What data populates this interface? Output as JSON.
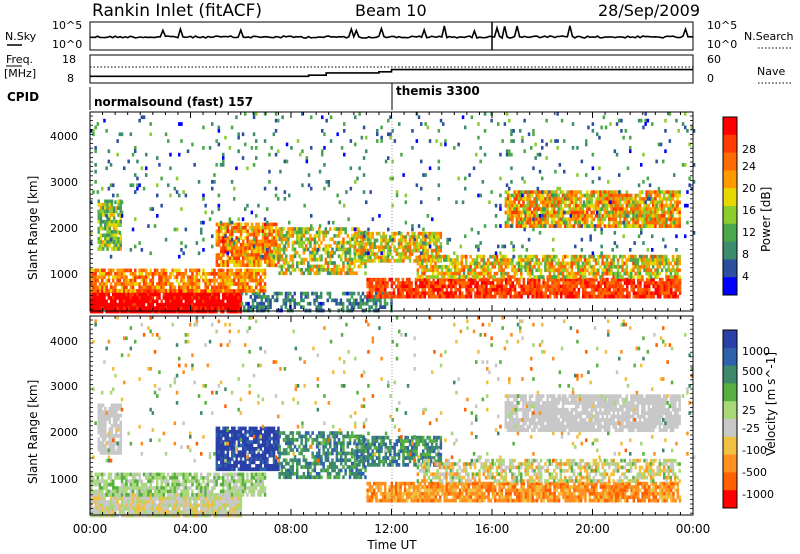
{
  "header": {
    "station": "Rankin Inlet (fitACF)",
    "beam": "Beam 10",
    "date": "28/Sep/2009"
  },
  "noise_panel": {
    "left_label": "N.Sky",
    "left_ticks": [
      "10^5",
      "10^0"
    ],
    "right_label": "N.Search",
    "right_ticks": [
      "10^5",
      "10^0"
    ]
  },
  "freq_panel": {
    "left_label_1": "Freq.",
    "left_label_2": "[MHz]",
    "left_ticks": [
      "18",
      "8"
    ],
    "right_label": "Nave",
    "right_ticks": [
      "60",
      "0"
    ]
  },
  "cpid_panel": {
    "label": "CPID",
    "segments": [
      "normalsound (fast) 157",
      "themis 3300"
    ]
  },
  "power_panel": {
    "ylabel": "Slant Range [km]",
    "yticks": [
      "4000",
      "3000",
      "2000",
      "1000"
    ],
    "colorbar_label": "Power [dB]",
    "colorbar_ticks": [
      "28",
      "24",
      "20",
      "16",
      "12",
      "8",
      "4"
    ],
    "colors": [
      "#0000ff",
      "#2c4fa0",
      "#3c8c6e",
      "#4aa84a",
      "#8ccc2c",
      "#e6d800",
      "#ff9a00",
      "#ff6a00",
      "#ff3a00",
      "#ff0000"
    ]
  },
  "velocity_panel": {
    "ylabel": "Slant Range [km]",
    "yticks": [
      "4000",
      "3000",
      "2000",
      "1000"
    ],
    "colorbar_label": "Velocity [m s^-1]",
    "colorbar_ticks": [
      "1000",
      "500",
      "100",
      "25",
      "-25",
      "-100",
      "-500",
      "-1000"
    ],
    "colors": [
      "#2a3fa8",
      "#2f62ac",
      "#3d8a6a",
      "#58b040",
      "#a8d878",
      "#c8c8c8",
      "#f0c040",
      "#ff9020",
      "#ff6000",
      "#ff0000"
    ]
  },
  "time_axis": {
    "label": "Time UT",
    "ticks": [
      "00:00",
      "04:00",
      "08:00",
      "12:00",
      "16:00",
      "20:00",
      "00:00"
    ]
  },
  "chart_data": [
    {
      "type": "line",
      "title": "N.Sky / N.Search",
      "x_range_hours": [
        0,
        24
      ],
      "y_scale": "log",
      "ylim": [
        "10^0",
        "10^5"
      ]
    },
    {
      "type": "line",
      "title": "Freq. / Nave",
      "x_range_hours": [
        0,
        24
      ],
      "ylim_freq_mhz": [
        8,
        18
      ],
      "ylim_nave": [
        0,
        60
      ],
      "freq_steps": [
        {
          "from_h": 0.0,
          "to_h": 8.7,
          "value": 10.4
        },
        {
          "from_h": 8.7,
          "to_h": 9.4,
          "value": 10.8
        },
        {
          "from_h": 9.4,
          "to_h": 11.5,
          "value": 11.6
        },
        {
          "from_h": 11.5,
          "to_h": 12.0,
          "value": 12.0
        },
        {
          "from_h": 12.0,
          "to_h": 24.0,
          "value": 12.8
        }
      ]
    },
    {
      "type": "heatmap",
      "title": "Power",
      "xlabel": "Time UT",
      "ylabel": "Slant Range [km]",
      "x_range_hours": [
        0,
        24
      ],
      "ylim_km": [
        180,
        4500
      ],
      "zlim_db": [
        0,
        32
      ],
      "scatter_regions": [
        {
          "t0": 0.0,
          "t1": 6.0,
          "r0": 180,
          "r1": 650,
          "level": 31,
          "spread": 3,
          "density": 0.95
        },
        {
          "t0": 6.0,
          "t1": 12.0,
          "r0": 180,
          "r1": 600,
          "level": 7,
          "spread": 4,
          "density": 0.5
        },
        {
          "t0": 0.0,
          "t1": 7.0,
          "r0": 650,
          "r1": 1100,
          "level": 22,
          "spread": 6,
          "density": 0.8
        },
        {
          "t0": 0.3,
          "t1": 1.2,
          "r0": 1500,
          "r1": 2600,
          "level": 14,
          "spread": 6,
          "density": 0.8
        },
        {
          "t0": 5.0,
          "t1": 7.5,
          "r0": 1200,
          "r1": 2100,
          "level": 22,
          "spread": 7,
          "density": 0.85
        },
        {
          "t0": 7.5,
          "t1": 11.0,
          "r0": 1000,
          "r1": 2000,
          "level": 16,
          "spread": 8,
          "density": 0.6
        },
        {
          "t0": 10.5,
          "t1": 14.0,
          "r0": 1300,
          "r1": 1900,
          "level": 18,
          "spread": 7,
          "density": 0.7
        },
        {
          "t0": 11.0,
          "t1": 23.5,
          "r0": 500,
          "r1": 900,
          "level": 27,
          "spread": 4,
          "density": 0.85
        },
        {
          "t0": 13.0,
          "t1": 23.5,
          "r0": 900,
          "r1": 1400,
          "level": 18,
          "spread": 8,
          "density": 0.75
        },
        {
          "t0": 16.5,
          "t1": 23.5,
          "r0": 2000,
          "r1": 2800,
          "level": 20,
          "spread": 8,
          "density": 0.85
        },
        {
          "t0": 0.0,
          "t1": 24.0,
          "r0": 1400,
          "r1": 4500,
          "level": 8,
          "spread": 6,
          "density": 0.05
        }
      ]
    },
    {
      "type": "heatmap",
      "title": "Velocity",
      "xlabel": "Time UT",
      "ylabel": "Slant Range [km]",
      "x_range_hours": [
        0,
        24
      ],
      "ylim_km": [
        180,
        4500
      ],
      "zlim_ms": [
        -1000,
        1000
      ],
      "scatter_regions": [
        {
          "t0": 0.0,
          "t1": 6.0,
          "r0": 180,
          "r1": 650,
          "level": 5,
          "spread": 1,
          "density": 0.95
        },
        {
          "t0": 0.0,
          "t1": 7.0,
          "r0": 650,
          "r1": 1100,
          "level": 4,
          "spread": 1,
          "density": 0.8
        },
        {
          "t0": 0.3,
          "t1": 1.2,
          "r0": 1500,
          "r1": 2600,
          "level": 5,
          "spread": 0,
          "density": 0.8
        },
        {
          "t0": 5.0,
          "t1": 7.5,
          "r0": 1200,
          "r1": 2100,
          "level": 0,
          "spread": 1,
          "density": 0.85
        },
        {
          "t0": 7.5,
          "t1": 11.0,
          "r0": 1000,
          "r1": 2000,
          "level": 2,
          "spread": 1,
          "density": 0.6
        },
        {
          "t0": 10.5,
          "t1": 14.0,
          "r0": 1300,
          "r1": 1900,
          "level": 2,
          "spread": 1,
          "density": 0.7
        },
        {
          "t0": 11.0,
          "t1": 23.5,
          "r0": 500,
          "r1": 900,
          "level": 7,
          "spread": 1,
          "density": 0.85
        },
        {
          "t0": 13.0,
          "t1": 23.5,
          "r0": 900,
          "r1": 1400,
          "level": 5,
          "spread": 2,
          "density": 0.6
        },
        {
          "t0": 16.5,
          "t1": 23.5,
          "r0": 2000,
          "r1": 2800,
          "level": 5,
          "spread": 0,
          "density": 0.85
        },
        {
          "t0": 0.0,
          "t1": 24.0,
          "r0": 1400,
          "r1": 4500,
          "level": 5,
          "spread": 3,
          "density": 0.04
        }
      ]
    }
  ]
}
